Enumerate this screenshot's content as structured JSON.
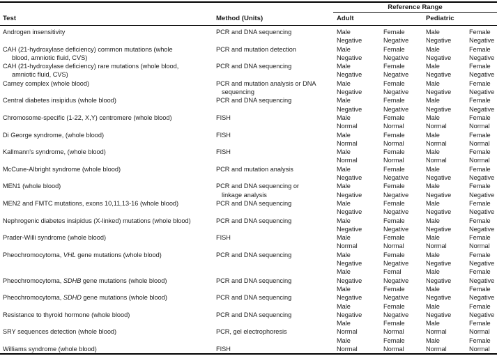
{
  "colors": {
    "background": "#ffffff",
    "text": "#1b1b1b",
    "rule": "#000000"
  },
  "table": {
    "spanner": "Reference Range",
    "columns": {
      "test": "Test",
      "method": "Method (Units)",
      "adult": "Adult",
      "pediatric": "Pediatric",
      "sub_male": "Male",
      "sub_female": "Female"
    },
    "rows": [
      {
        "test": [
          [
            "Androgen insensitivity"
          ]
        ],
        "method": [
          "PCR and DNA sequencing"
        ],
        "ref": [
          [
            "Male",
            "Female",
            "Male",
            "Female"
          ],
          [
            "Negative",
            "Negative",
            "Negative",
            "Negative"
          ]
        ]
      },
      {
        "test": [
          [
            "CAH (21-hydroxylase deficiency) common mutations (whole"
          ],
          [
            "blood, amniotic fluid, CVS)"
          ]
        ],
        "method": [
          "PCR and mutation detection"
        ],
        "ref": [
          [
            "Male",
            "Female",
            "Male",
            "Female"
          ],
          [
            "Negative",
            "Negative",
            "Negative",
            "Negative"
          ]
        ]
      },
      {
        "test": [
          [
            "CAH (21-hydroxylase deficiency) rare mutations (whole blood,"
          ],
          [
            "amniotic fluid, CVS)"
          ]
        ],
        "method": [
          "PCR and DNA sequencing"
        ],
        "ref": [
          [
            "Male",
            "Female",
            "Male",
            "Female"
          ],
          [
            "Negative",
            "Negative",
            "Negative",
            "Negative"
          ]
        ]
      },
      {
        "test": [
          [
            "Carney complex (whole blood)"
          ]
        ],
        "method": [
          "PCR and mutation analysis or DNA",
          "sequencing"
        ],
        "ref": [
          [
            "Male",
            "Female",
            "Male",
            "Female"
          ],
          [
            "Negative",
            "Negative",
            "Negative",
            "Negative"
          ]
        ]
      },
      {
        "test": [
          [
            "Central diabetes insipidus (whole blood)"
          ]
        ],
        "method": [
          "PCR and DNA sequencing"
        ],
        "ref": [
          [
            "Male",
            "Female",
            "Male",
            "Female"
          ],
          [
            "Negative",
            "Negative",
            "Negative",
            "Negative"
          ]
        ]
      },
      {
        "test": [
          [
            "Chromosome-specific (1-22, X,Y) centromere (whole blood)"
          ]
        ],
        "method": [
          "FISH"
        ],
        "ref": [
          [
            "Male",
            "Female",
            "Male",
            "Female"
          ],
          [
            "Normal",
            "Normal",
            "Normal",
            "Normal"
          ]
        ]
      },
      {
        "test": [
          [
            "Di George syndrome, (whole blood)"
          ]
        ],
        "method": [
          "FISH"
        ],
        "ref": [
          [
            "Male",
            "Female",
            "Male",
            "Female"
          ],
          [
            "Normal",
            "Normal",
            "Normal",
            "Normal"
          ]
        ]
      },
      {
        "test": [
          [
            "Kallmann's syndrome, (whole blood)"
          ]
        ],
        "method": [
          "FISH"
        ],
        "ref": [
          [
            "Male",
            "Female",
            "Male",
            "Female"
          ],
          [
            "Normal",
            "Normal",
            "Normal",
            "Normal"
          ]
        ]
      },
      {
        "test": [
          [
            "McCune-Albright syndrome (whole blood)"
          ]
        ],
        "method": [
          "PCR and mutation analysis"
        ],
        "ref": [
          [
            "Male",
            "Female",
            "Male",
            "Female"
          ],
          [
            "Negative",
            "Negative",
            "Negative",
            "Negative"
          ]
        ]
      },
      {
        "test": [
          [
            "MEN1 (whole blood)"
          ]
        ],
        "method": [
          "PCR and DNA sequencing or",
          "linkage analysis"
        ],
        "ref": [
          [
            "Male",
            "Female",
            "Male",
            "Female"
          ],
          [
            "Negative",
            "Negative",
            "Negative",
            "Negative"
          ]
        ]
      },
      {
        "test": [
          [
            "MEN2 and FMTC mutations, exons 10,11,13-16 (whole blood)"
          ]
        ],
        "method": [
          "PCR and DNA sequencing"
        ],
        "ref": [
          [
            "Male",
            "Female",
            "Male",
            "Female"
          ],
          [
            "Negative",
            "Negative",
            "Negative",
            "Negative"
          ]
        ]
      },
      {
        "test": [
          [
            "Nephrogenic diabetes insipidus (X-linked) mutations (whole blood)"
          ]
        ],
        "method": [
          "PCR and DNA sequencing"
        ],
        "ref": [
          [
            "Male",
            "Female",
            "Male",
            "Female"
          ],
          [
            "Negative",
            "Negative",
            "Negative",
            "Negative"
          ]
        ]
      },
      {
        "test": [
          [
            "Prader-Willi syndrome (whole blood)"
          ]
        ],
        "method": [
          "FISH"
        ],
        "ref": [
          [
            "Male",
            "Female",
            "Male",
            "Female"
          ],
          [
            "Normal",
            "Normal",
            "Normal",
            "Normal"
          ]
        ]
      },
      {
        "test": [
          [
            "Pheochromocytoma, ",
            {
              "i": "VHL"
            },
            " gene mutations (whole blood)"
          ]
        ],
        "method": [
          "PCR and DNA sequencing"
        ],
        "ref": [
          [
            "Male",
            "Female",
            "Male",
            "Female"
          ],
          [
            "Negative",
            "Negative",
            "Negative",
            "Negative"
          ],
          [
            "Male",
            "Femal",
            "Male",
            "Female"
          ]
        ]
      },
      {
        "test": [
          [
            "Pheochromocytoma, ",
            {
              "i": "SDHB"
            },
            " gene mutations (whole blood)"
          ]
        ],
        "method": [
          "PCR and DNA sequencing"
        ],
        "ref": [
          [
            "Negative",
            "Negative",
            "Negative",
            "Negative"
          ],
          [
            "Male",
            "Female",
            "Male",
            "Female"
          ]
        ]
      },
      {
        "test": [
          [
            "Pheochromocytoma, ",
            {
              "i": "SDHD"
            },
            " gene mutations (whole blood)"
          ]
        ],
        "method": [
          "PCR and DNA sequencing"
        ],
        "ref": [
          [
            "Negative",
            "Negative",
            "Negative",
            "Negative"
          ],
          [
            "Male",
            "Female",
            "Male",
            "Female"
          ]
        ]
      },
      {
        "test": [
          [
            "Resistance to thyroid hormone (whole blood)"
          ]
        ],
        "method": [
          "PCR and DNA sequencing"
        ],
        "ref": [
          [
            "Negative",
            "Negative",
            "Negative",
            "Negative"
          ],
          [
            "Male",
            "Female",
            "Male",
            "Female"
          ]
        ]
      },
      {
        "test": [
          [
            "SRY sequences detection (whole blood)"
          ]
        ],
        "method": [
          "PCR, gel electrophoresis"
        ],
        "ref": [
          [
            "Normal",
            "Normal",
            "Normal",
            "Normal"
          ],
          [
            "Male",
            "Female",
            "Male",
            "Female"
          ]
        ]
      },
      {
        "test": [
          [
            "Williams syndrome (whole blood)"
          ]
        ],
        "method": [
          "FISH"
        ],
        "ref": [
          [
            "Normal",
            "Normal",
            "Normal",
            "Normal"
          ]
        ]
      }
    ]
  }
}
